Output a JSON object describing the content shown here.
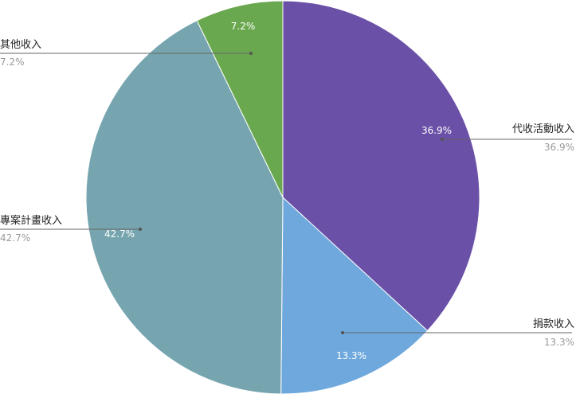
{
  "chart_data": {
    "type": "pie",
    "start_angle_deg": 0,
    "direction": "clockwise",
    "slices": [
      {
        "label": "代收活動收入",
        "value": 36.9,
        "value_label": "36.9%",
        "color": "#6a50a7"
      },
      {
        "label": "捐款收入",
        "value": 13.3,
        "value_label": "13.3%",
        "color": "#6fa8dc"
      },
      {
        "label": "專案計畫收入",
        "value": 42.7,
        "value_label": "42.7%",
        "color": "#76a5af"
      },
      {
        "label": "其他收入",
        "value": 7.2,
        "value_label": "7.2%",
        "color": "#6aa84f"
      }
    ]
  }
}
